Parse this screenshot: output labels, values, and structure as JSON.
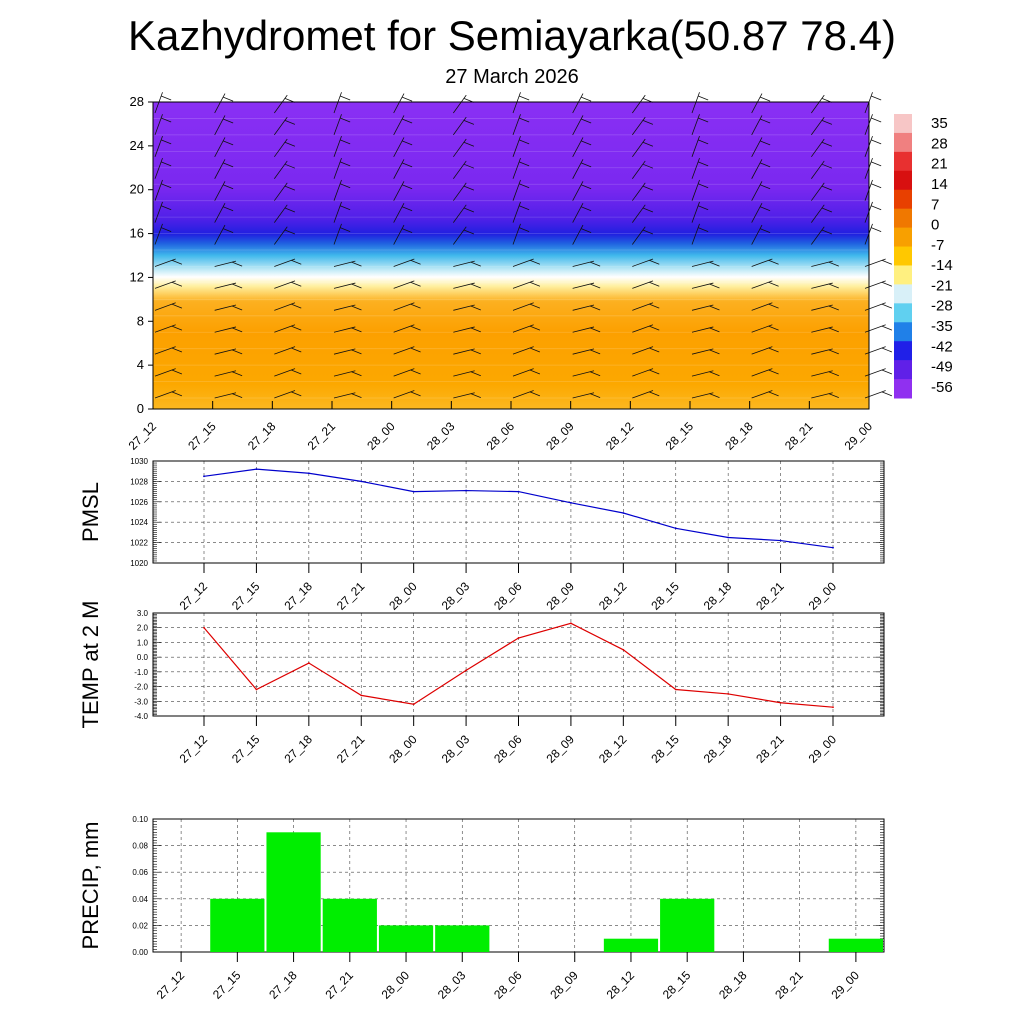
{
  "header": {
    "title": "Kazhydromet for Semiayarka(50.87 78.4)",
    "date": "27 March 2026"
  },
  "time_labels": [
    "27_12",
    "27_15",
    "27_18",
    "27_21",
    "28_00",
    "28_03",
    "28_06",
    "28_09",
    "28_12",
    "28_15",
    "28_18",
    "28_21",
    "29_00"
  ],
  "chart_data": [
    {
      "type": "heatmap",
      "name": "vertical-cross-section",
      "title": "",
      "xlabel": "",
      "ylabel": "",
      "categories": [
        "27_12",
        "27_15",
        "27_18",
        "27_21",
        "28_00",
        "28_03",
        "28_06",
        "28_09",
        "28_12",
        "28_15",
        "28_18",
        "28_21",
        "29_00"
      ],
      "y_ticks": [
        0,
        4,
        8,
        12,
        16,
        20,
        24,
        28
      ],
      "ylim": [
        0,
        28
      ],
      "colorbar_labels": [
        "35",
        "28",
        "21",
        "14",
        "7",
        "0",
        "-7",
        "-14",
        "-21",
        "-28",
        "-35",
        "-42",
        "-49",
        "-56"
      ],
      "colorbar_colors": [
        "#f7c6c6",
        "#f08080",
        "#e83030",
        "#d81010",
        "#e84000",
        "#f07800",
        "#f8a000",
        "#ffc800",
        "#fff080",
        "#d8f0f8",
        "#60d0f0",
        "#2080e8",
        "#2020e8",
        "#6020e8",
        "#9030f0"
      ],
      "bands": [
        {
          "range": [
            0,
            12
          ],
          "description": "orange warm layer"
        },
        {
          "range": [
            12,
            16
          ],
          "description": "light to blue transition"
        },
        {
          "range": [
            16,
            28
          ],
          "description": "blue/purple cold layer"
        }
      ],
      "wind_barbs": true
    },
    {
      "type": "line",
      "name": "pmsl",
      "title": "",
      "ylabel": "PMSL",
      "categories": [
        "27_12",
        "27_15",
        "27_18",
        "27_21",
        "28_00",
        "28_03",
        "28_06",
        "28_09",
        "28_12",
        "28_15",
        "28_18",
        "28_21",
        "29_00"
      ],
      "values": [
        1028.5,
        1029.2,
        1028.8,
        1028.0,
        1027.0,
        1027.1,
        1027.0,
        1025.9,
        1024.9,
        1023.4,
        1022.5,
        1022.2,
        1021.5
      ],
      "ylim": [
        1020,
        1030
      ],
      "y_ticks": [
        1020,
        1022,
        1024,
        1026,
        1028,
        1030
      ],
      "y_tick_labels": [
        "1020",
        "1022",
        "1024",
        "1026",
        "1028",
        "1030"
      ],
      "color": "#0000cc"
    },
    {
      "type": "line",
      "name": "temp-2m",
      "title": "",
      "ylabel": "TEMP at 2 M",
      "categories": [
        "27_12",
        "27_15",
        "27_18",
        "27_21",
        "28_00",
        "28_03",
        "28_06",
        "28_09",
        "28_12",
        "28_15",
        "28_18",
        "28_21",
        "29_00"
      ],
      "values": [
        2.0,
        -2.2,
        -0.4,
        -2.6,
        -3.2,
        -0.9,
        1.3,
        2.3,
        0.5,
        -2.2,
        -2.5,
        -3.1,
        -3.4
      ],
      "ylim": [
        -4,
        3
      ],
      "y_ticks": [
        -4,
        -3,
        -2,
        -1,
        0,
        1,
        2,
        3
      ],
      "y_tick_labels": [
        "-4.0",
        "-3.0",
        "-2.0",
        "-1.0",
        "0.0",
        "1.0",
        "2.0",
        "3.0"
      ],
      "color": "#dd0000"
    },
    {
      "type": "bar",
      "name": "precip",
      "title": "",
      "ylabel": "PRECIP, mm",
      "categories": [
        "27_12",
        "27_15",
        "27_18",
        "27_21",
        "28_00",
        "28_03",
        "28_06",
        "28_09",
        "28_12",
        "28_15",
        "28_18",
        "28_21",
        "29_00"
      ],
      "values": [
        0,
        0.04,
        0.09,
        0.04,
        0.02,
        0.02,
        0,
        0,
        0.01,
        0.04,
        0,
        0,
        0.01
      ],
      "ylim": [
        0,
        0.1
      ],
      "y_ticks": [
        0,
        0.02,
        0.04,
        0.06,
        0.08,
        0.1
      ],
      "y_tick_labels": [
        "0.00",
        "0.02",
        "0.04",
        "0.06",
        "0.08",
        "0.10"
      ],
      "color": "#00ee00"
    }
  ]
}
